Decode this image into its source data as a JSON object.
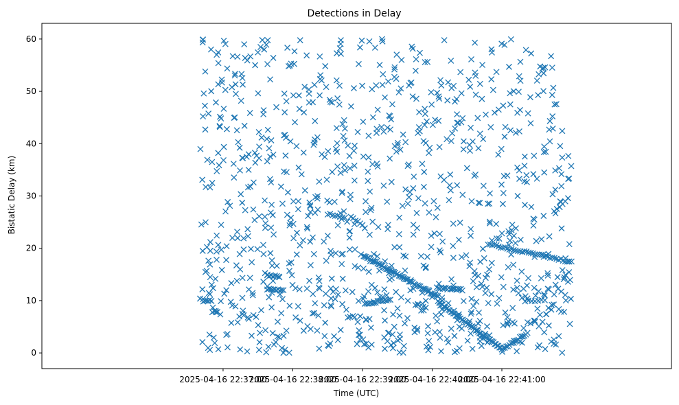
{
  "chart_data": {
    "type": "scatter",
    "title": "Detections in Delay",
    "xlabel": "Time (UTC)",
    "ylabel": "Bistatic Delay (km)",
    "marker": "x",
    "color": "#1f77b4",
    "xlim_seconds": [
      -156,
      386
    ],
    "ylim": [
      -3,
      63
    ],
    "x_ticks": [
      {
        "t": 0,
        "label": "2025-04-16 22:37:00"
      },
      {
        "t": 60,
        "label": "2025-04-16 22:38:00"
      },
      {
        "t": 120,
        "label": "2025-04-16 22:39:00"
      },
      {
        "t": 180,
        "label": "2025-04-16 22:40:00"
      },
      {
        "t": 240,
        "label": "2025-04-16 22:41:00"
      }
    ],
    "y_ticks": [
      0,
      10,
      20,
      30,
      40,
      50,
      60
    ],
    "data_start_seconds": -20,
    "data_end_seconds": 300,
    "tracks": [
      {
        "t0": 121,
        "t1": 185,
        "y0": 18.6,
        "y1": 10.7,
        "n": 60
      },
      {
        "t0": 185,
        "t1": 240,
        "y0": 9.8,
        "y1": 0.7,
        "n": 55
      },
      {
        "t0": 240,
        "t1": 262,
        "y0": 0.6,
        "y1": 3.8,
        "n": 18
      },
      {
        "t0": 228,
        "t1": 300,
        "y0": 20.8,
        "y1": 17.4,
        "n": 40
      },
      {
        "t0": 184,
        "t1": 206,
        "y0": 12.4,
        "y1": 12.1,
        "n": 18
      },
      {
        "t0": 122,
        "t1": 144,
        "y0": 9.3,
        "y1": 10.3,
        "n": 15
      },
      {
        "t0": 38,
        "t1": 52,
        "y0": 12.2,
        "y1": 12.0,
        "n": 10
      },
      {
        "t0": 38,
        "t1": 48,
        "y0": 14.8,
        "y1": 14.6,
        "n": 7
      },
      {
        "t0": -17,
        "t1": -10,
        "y0": 10.0,
        "y1": 10.0,
        "n": 6
      },
      {
        "t0": 260,
        "t1": 277,
        "y0": 10.0,
        "y1": 10.0,
        "n": 7
      },
      {
        "t0": 90,
        "t1": 105,
        "y0": 26.5,
        "y1": 26.0,
        "n": 8
      },
      {
        "t0": 110,
        "t1": 122,
        "y0": 26.0,
        "y1": 24.0,
        "n": 7
      },
      {
        "t0": 285,
        "t1": 297,
        "y0": 27.0,
        "y1": 29.5,
        "n": 6
      }
    ],
    "scatter_groups": [
      {
        "t0": -20,
        "t1": 300,
        "y0": 0,
        "y1": 60,
        "n": 900
      },
      {
        "t0": -20,
        "t1": 300,
        "y0": 0,
        "y1": 15,
        "n": 130
      }
    ],
    "random_seed": 7
  }
}
